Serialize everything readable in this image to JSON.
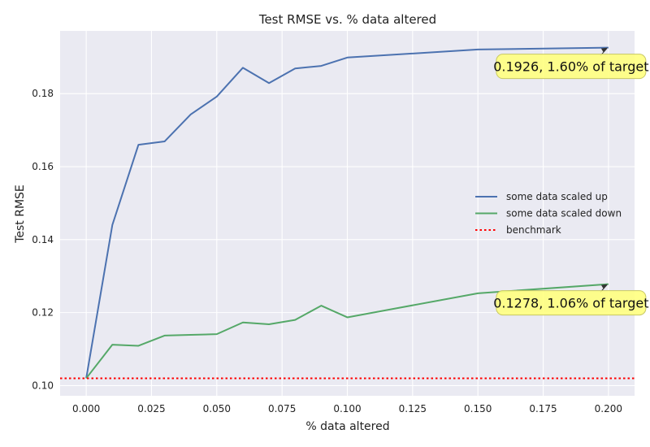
{
  "chart_data": {
    "type": "line",
    "title": "Test RMSE vs. % data altered",
    "xlabel": "% data altered",
    "ylabel": "Test RMSE",
    "xlim": [
      -0.01,
      0.21
    ],
    "ylim": [
      0.0972,
      0.1972
    ],
    "xticks": [
      "0.000",
      "0.025",
      "0.050",
      "0.075",
      "0.100",
      "0.125",
      "0.150",
      "0.175",
      "0.200"
    ],
    "yticks": [
      "0.10",
      "0.12",
      "0.14",
      "0.16",
      "0.18"
    ],
    "grid": true,
    "legend_position": "right-center",
    "series": [
      {
        "name": "some data scaled up",
        "color": "#4c72b0",
        "style": "solid",
        "x": [
          0.0,
          0.01,
          0.02,
          0.03,
          0.04,
          0.05,
          0.06,
          0.07,
          0.08,
          0.09,
          0.1,
          0.15,
          0.2
        ],
        "y": [
          0.102,
          0.144,
          0.166,
          0.1669,
          0.1743,
          0.1792,
          0.1871,
          0.1829,
          0.1869,
          0.1876,
          0.1899,
          0.1921,
          0.1926
        ]
      },
      {
        "name": "some data scaled down",
        "color": "#55a868",
        "style": "solid",
        "x": [
          0.0,
          0.01,
          0.02,
          0.03,
          0.04,
          0.05,
          0.06,
          0.07,
          0.08,
          0.09,
          0.1,
          0.15,
          0.2
        ],
        "y": [
          0.102,
          0.1112,
          0.1109,
          0.1137,
          0.1139,
          0.1141,
          0.1173,
          0.1168,
          0.118,
          0.1219,
          0.1187,
          0.1253,
          0.1278
        ]
      },
      {
        "name": "benchmark",
        "color": "#ff0000",
        "style": "dotted",
        "hline": 0.102
      }
    ],
    "annotations": [
      {
        "text": "0.1926, 1.60% of target",
        "x": 0.2,
        "y": 0.1926,
        "series": 0
      },
      {
        "text": "0.1278, 1.06% of target",
        "x": 0.2,
        "y": 0.1278,
        "series": 1
      }
    ],
    "colors": {
      "background": "#eaeaf2",
      "grid": "#ffffff",
      "annotation_fill": "#ffff80",
      "annotation_border": "#c8c864"
    }
  }
}
